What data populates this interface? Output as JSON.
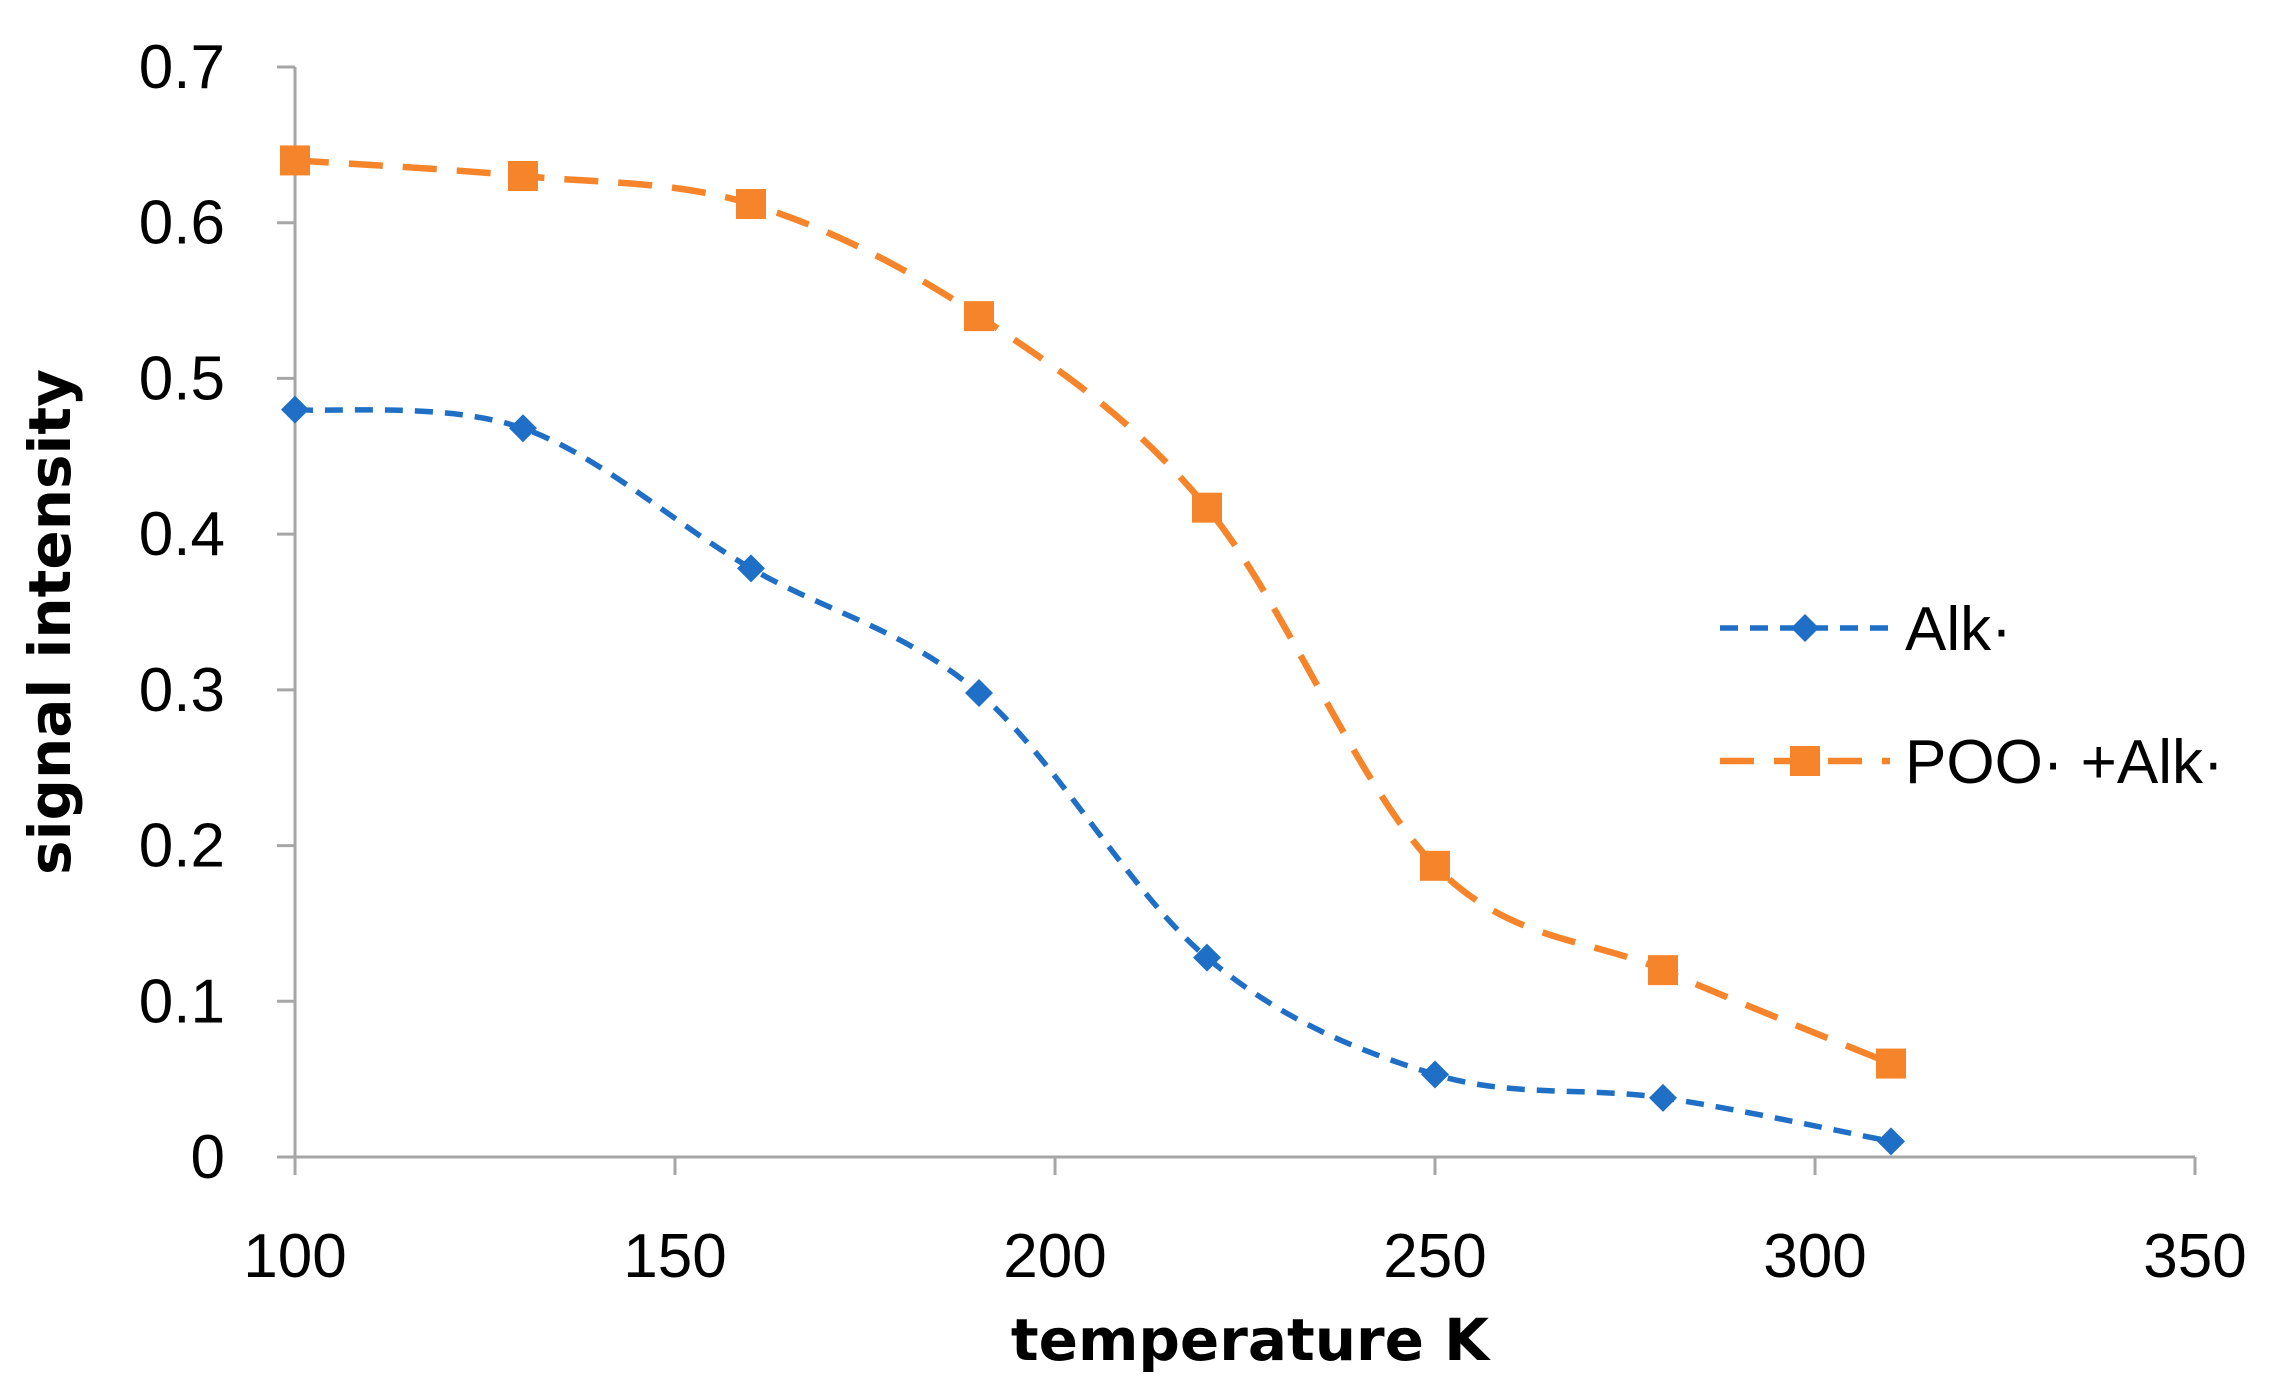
{
  "chart_data": {
    "type": "line",
    "title": "",
    "xlabel": "temperature K",
    "ylabel": "signal intensity",
    "xlim": [
      100,
      350
    ],
    "ylim": [
      0,
      0.7
    ],
    "xticks": [
      100,
      150,
      200,
      250,
      300,
      350
    ],
    "yticks": [
      0,
      0.1,
      0.2,
      0.3,
      0.4,
      0.5,
      0.6,
      0.7
    ],
    "xtick_labels": [
      "100",
      "150",
      "200",
      "250",
      "300",
      "350"
    ],
    "ytick_labels": [
      "0",
      "0.1",
      "0.2",
      "0.3",
      "0.4",
      "0.5",
      "0.6",
      "0.7"
    ],
    "grid": false,
    "legend_position": "right",
    "series": [
      {
        "name": "Alk·",
        "color": "#1f6fc6",
        "marker": "diamond",
        "line_style": "dashed",
        "x": [
          100,
          130,
          160,
          190,
          220,
          250,
          280,
          310
        ],
        "y": [
          0.48,
          0.468,
          0.378,
          0.298,
          0.128,
          0.053,
          0.038,
          0.01
        ]
      },
      {
        "name": "POO· +Alk·",
        "color": "#f5842a",
        "marker": "square",
        "line_style": "dashed",
        "x": [
          100,
          130,
          160,
          190,
          220,
          250,
          280,
          310
        ],
        "y": [
          0.64,
          0.63,
          0.612,
          0.54,
          0.417,
          0.187,
          0.12,
          0.06
        ]
      }
    ]
  }
}
